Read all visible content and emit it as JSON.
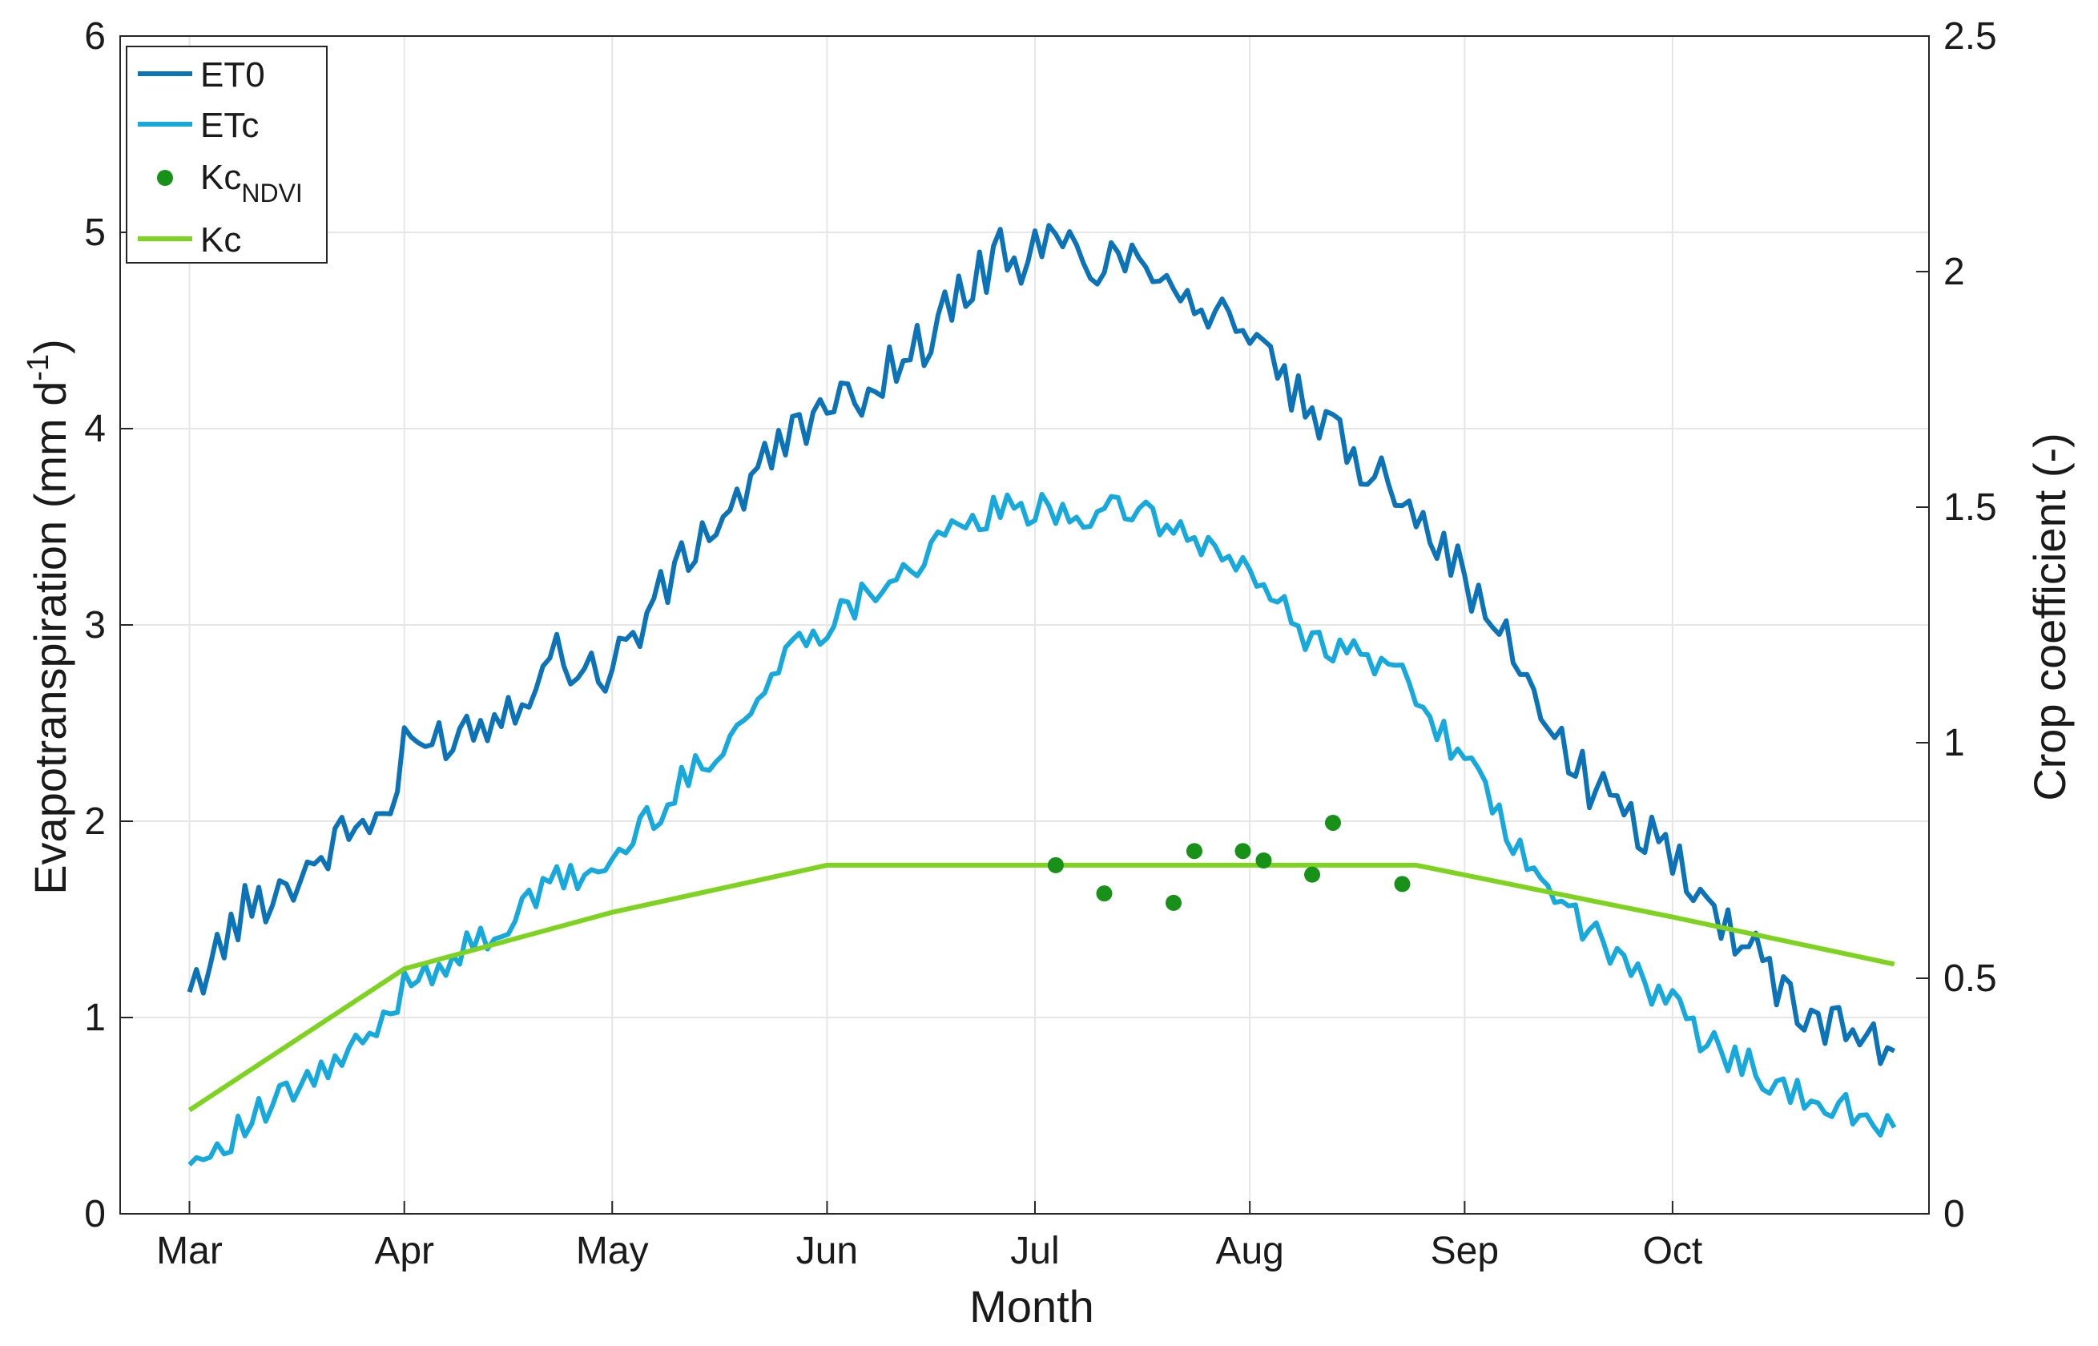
{
  "chart_data": {
    "type": "line",
    "xlabel": "Month",
    "ylabel_left": "Evapotranspiration (mm d",
    "ylabel_left_sup": "-1",
    "ylabel_left_close": ")",
    "ylabel_right": "Crop coefficient (-)",
    "x_ticks": [
      "Mar",
      "Apr",
      "May",
      "Jun",
      "Jul",
      "Aug",
      "Sep",
      "Oct"
    ],
    "x_tick_days": [
      0,
      31,
      61,
      92,
      122,
      153,
      184,
      214
    ],
    "xlim_days": [
      -10,
      251
    ],
    "x_start": "Mar 1",
    "ylim_left": [
      0,
      6
    ],
    "yticks_left": [
      "0",
      "1",
      "2",
      "3",
      "4",
      "5",
      "6"
    ],
    "ylim_right": [
      0,
      2.5
    ],
    "yticks_right": [
      "0",
      "0.5",
      "1",
      "1.5",
      "2",
      "2.5"
    ],
    "grid": true,
    "legend_position": "top-left",
    "colors": {
      "et0": "#0c74b6",
      "etc": "#17a8dc",
      "kc_ndvi": "#179117",
      "kc": "#7ed321"
    },
    "legend": {
      "et0": "ET0",
      "etc": "ETc",
      "kc_ndvi_base": "Kc",
      "kc_ndvi_sub": "NDVI",
      "kc": "Kc"
    },
    "series": [
      {
        "name": "ET0",
        "axis": "left",
        "x_days": [
          0,
          8,
          15,
          23,
          29,
          31,
          38,
          45,
          53,
          60,
          66,
          74,
          81,
          88,
          92,
          99,
          106,
          112,
          117,
          120,
          124,
          131,
          138,
          142,
          147,
          152,
          156,
          161,
          168,
          175,
          181,
          187,
          193,
          199,
          206,
          214,
          220,
          226,
          231,
          240,
          246
        ],
        "values": [
          1.13,
          1.55,
          1.7,
          1.95,
          2.05,
          2.35,
          2.45,
          2.55,
          2.85,
          2.75,
          3.05,
          3.45,
          3.7,
          4.05,
          4.05,
          4.25,
          4.45,
          4.7,
          4.9,
          4.85,
          4.95,
          4.85,
          4.9,
          4.75,
          4.6,
          4.55,
          4.3,
          4.1,
          3.85,
          3.7,
          3.4,
          3.05,
          2.75,
          2.3,
          2.05,
          1.85,
          1.5,
          1.4,
          1.05,
          0.95,
          0.83
        ]
      },
      {
        "name": "ETc",
        "axis": "left",
        "x_days": [
          0,
          8,
          15,
          23,
          29,
          31,
          38,
          45,
          53,
          60,
          66,
          74,
          81,
          88,
          92,
          99,
          106,
          112,
          117,
          120,
          124,
          131,
          138,
          142,
          147,
          152,
          156,
          161,
          168,
          175,
          181,
          187,
          193,
          199,
          206,
          214,
          220,
          226,
          231,
          240,
          246
        ],
        "values": [
          0.25,
          0.45,
          0.62,
          0.8,
          1.0,
          1.2,
          1.3,
          1.45,
          1.7,
          1.75,
          2.0,
          2.3,
          2.55,
          2.95,
          3.0,
          3.2,
          3.35,
          3.5,
          3.6,
          3.55,
          3.6,
          3.55,
          3.6,
          3.45,
          3.4,
          3.3,
          3.15,
          2.95,
          2.85,
          2.75,
          2.45,
          2.15,
          1.75,
          1.55,
          1.3,
          1.05,
          0.85,
          0.75,
          0.6,
          0.52,
          0.44
        ]
      },
      {
        "name": "Kc",
        "axis": "right",
        "x_days": [
          0,
          31,
          61,
          92,
          122,
          153,
          177,
          214,
          246
        ],
        "values": [
          0.22,
          0.52,
          0.64,
          0.74,
          0.74,
          0.74,
          0.74,
          0.63,
          0.53
        ]
      },
      {
        "name": "KcNDVI",
        "axis": "right",
        "x_days": [
          125,
          132,
          142,
          145,
          152,
          155,
          162,
          165,
          175
        ],
        "values": [
          0.74,
          0.68,
          0.66,
          0.77,
          0.77,
          0.75,
          0.72,
          0.83,
          0.7
        ]
      }
    ]
  }
}
